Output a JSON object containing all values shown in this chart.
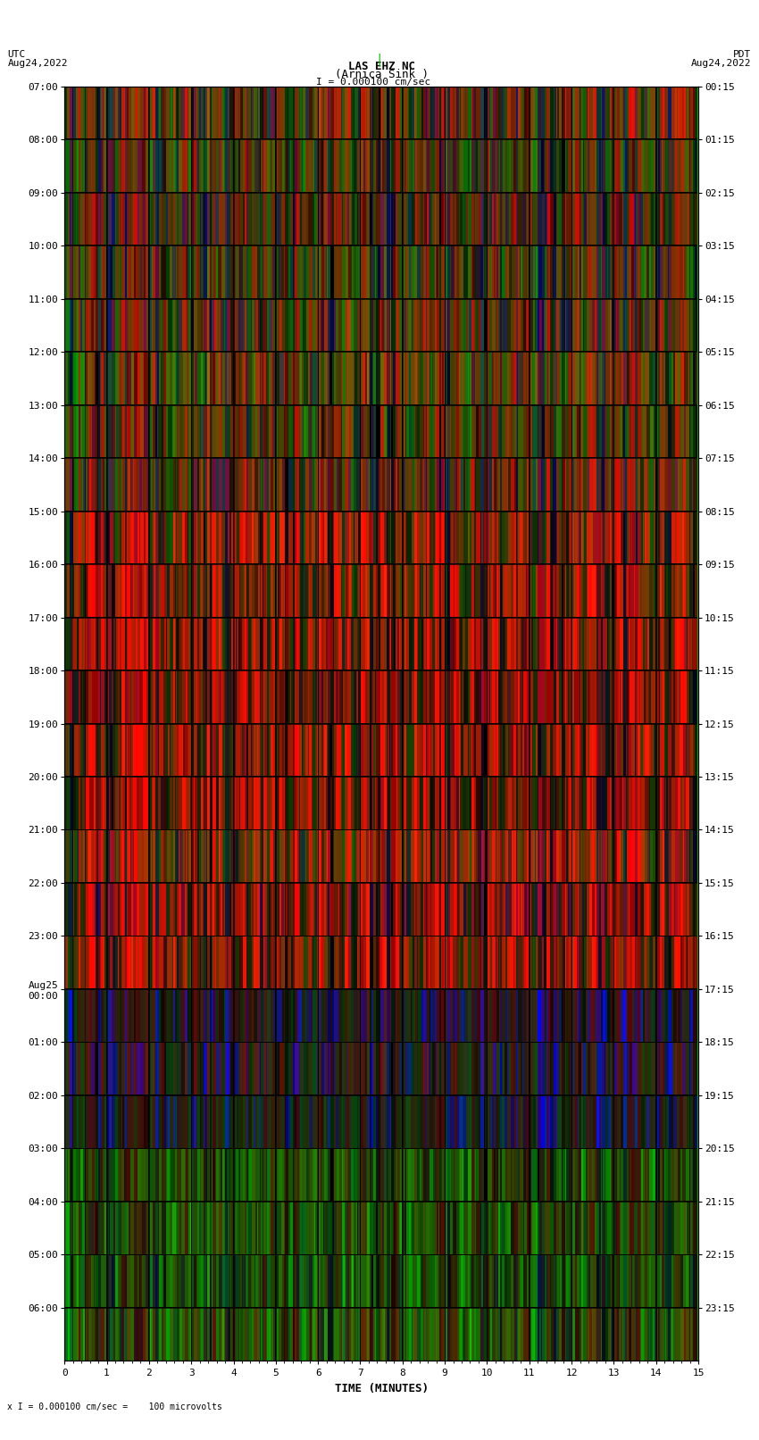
{
  "title_line1": "LAS EHZ NC",
  "title_line2": "(Arnica Sink )",
  "scale_text": "I = 0.000100 cm/sec",
  "bottom_scale_text": "x I = 0.000100 cm/sec =    100 microvolts",
  "left_label": "UTC\nAug24,2022",
  "right_label": "PDT\nAug24,2022",
  "xlabel": "TIME (MINUTES)",
  "left_yticks": [
    "07:00",
    "08:00",
    "09:00",
    "10:00",
    "11:00",
    "12:00",
    "13:00",
    "14:00",
    "15:00",
    "16:00",
    "17:00",
    "18:00",
    "19:00",
    "20:00",
    "21:00",
    "22:00",
    "23:00",
    "Aug25\n00:00",
    "01:00",
    "02:00",
    "03:00",
    "04:00",
    "05:00",
    "06:00"
  ],
  "right_yticks": [
    "00:15",
    "01:15",
    "02:15",
    "03:15",
    "04:15",
    "05:15",
    "06:15",
    "07:15",
    "08:15",
    "09:15",
    "10:15",
    "11:15",
    "12:15",
    "13:15",
    "14:15",
    "15:15",
    "16:15",
    "17:15",
    "18:15",
    "19:15",
    "20:15",
    "21:15",
    "22:15",
    "23:15"
  ],
  "xticks": [
    0,
    1,
    2,
    3,
    4,
    5,
    6,
    7,
    8,
    9,
    10,
    11,
    12,
    13,
    14,
    15
  ],
  "n_rows": 24,
  "font_size": 8,
  "title_font_size": 9,
  "green_line_color": "#00bb00"
}
